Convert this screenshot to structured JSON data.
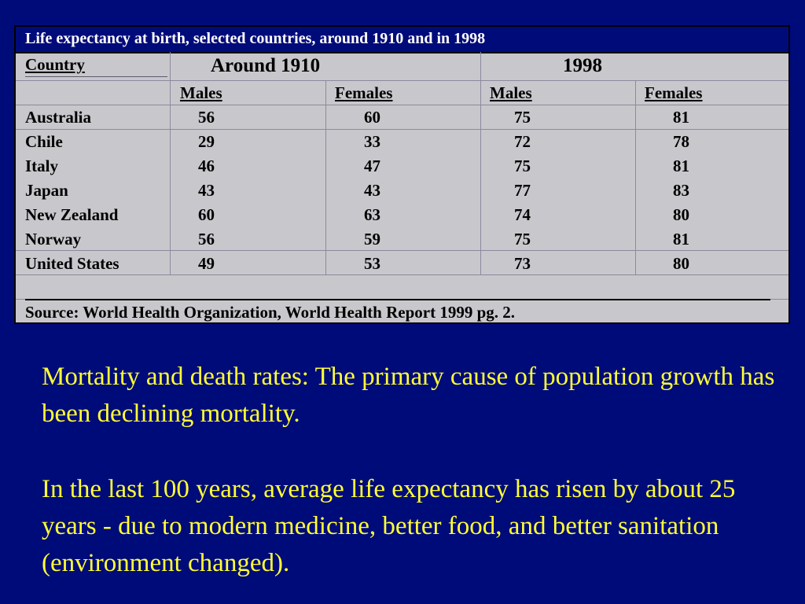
{
  "table": {
    "title": "Life expectancy at birth, selected countries, around 1910 and in 1998",
    "country_header": "Country",
    "period_headers": [
      "Around 1910",
      "1998"
    ],
    "sex_headers": [
      "Males",
      "Females",
      "Males",
      "Females"
    ],
    "rows": [
      {
        "country": "Australia",
        "values": [
          "56",
          "60",
          "75",
          "81"
        ]
      },
      {
        "country": "Chile",
        "values": [
          "29",
          "33",
          "72",
          "78"
        ]
      },
      {
        "country": "Italy",
        "values": [
          "46",
          "47",
          "75",
          "81"
        ]
      },
      {
        "country": "Japan",
        "values": [
          "43",
          "43",
          "77",
          "83"
        ]
      },
      {
        "country": "New Zealand",
        "values": [
          "60",
          "63",
          "74",
          "80"
        ]
      },
      {
        "country": "Norway",
        "values": [
          "56",
          "59",
          "75",
          "81"
        ]
      },
      {
        "country": "United States",
        "values": [
          "49",
          "53",
          "73",
          "80"
        ]
      }
    ],
    "source": "Source: World Health Organization, World Health Report 1999 pg. 2."
  },
  "body": {
    "paragraph1": "Mortality and death rates: The primary cause of population growth has been declining mortality.",
    "paragraph2": "In the last 100 years, average life expectancy has risen by about 25 years - due to modern medicine, better food, and better sanitation (environment changed)."
  },
  "colors": {
    "background": "#000b7a",
    "table_fill": "#c8c8cc",
    "body_text": "#ffff33",
    "title_text": "#ffffff"
  }
}
